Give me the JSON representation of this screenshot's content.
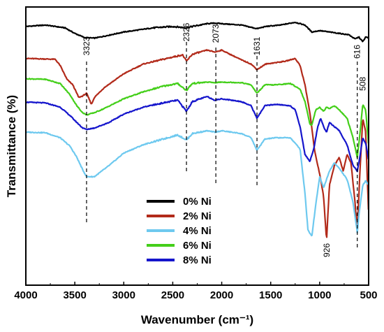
{
  "chart_data": {
    "type": "line",
    "title": "",
    "xlabel": "Wavenumber (cm⁻¹)",
    "ylabel": "Transmittance (%)",
    "xlim": [
      4000,
      500
    ],
    "x_reversed": true,
    "xticks": [
      4000,
      3500,
      3000,
      2500,
      2000,
      1500,
      1000,
      500
    ],
    "ylim": [
      0,
      10
    ],
    "y_ticks_shown": false,
    "grid": false,
    "legend_position": "center",
    "annotations": [
      {
        "label": "3323",
        "x": 3380,
        "label_pos": "top"
      },
      {
        "label": "2326",
        "x": 2360,
        "label_pos": "top"
      },
      {
        "label": "2073",
        "x": 2060,
        "label_pos": "top"
      },
      {
        "label": "1631",
        "x": 1640,
        "label_pos": "top"
      },
      {
        "label": "616",
        "x": 616,
        "label_pos": "top"
      },
      {
        "label": "508",
        "x": 560,
        "label_pos": "right"
      },
      {
        "label": "926",
        "x": 926,
        "label_pos": "bottom"
      }
    ],
    "series": [
      {
        "name": "0% Ni",
        "color": "#000000",
        "points": [
          [
            4000,
            9.3
          ],
          [
            3800,
            9.35
          ],
          [
            3600,
            9.25
          ],
          [
            3500,
            9.05
          ],
          [
            3400,
            8.9
          ],
          [
            3300,
            8.88
          ],
          [
            3200,
            8.95
          ],
          [
            3000,
            9.1
          ],
          [
            2700,
            9.25
          ],
          [
            2500,
            9.3
          ],
          [
            2360,
            9.25
          ],
          [
            2300,
            9.3
          ],
          [
            2150,
            9.4
          ],
          [
            2070,
            9.42
          ],
          [
            2000,
            9.4
          ],
          [
            1800,
            9.35
          ],
          [
            1640,
            9.22
          ],
          [
            1550,
            9.3
          ],
          [
            1400,
            9.35
          ],
          [
            1250,
            9.45
          ],
          [
            1150,
            9.35
          ],
          [
            1080,
            9.1
          ],
          [
            1000,
            9.15
          ],
          [
            900,
            9.1
          ],
          [
            800,
            9.05
          ],
          [
            700,
            9.0
          ],
          [
            640,
            8.85
          ],
          [
            600,
            8.92
          ],
          [
            560,
            8.75
          ],
          [
            530,
            8.92
          ],
          [
            500,
            8.9
          ]
        ]
      },
      {
        "name": "2% Ni",
        "color": "#b22a1a",
        "points": [
          [
            4000,
            8.15
          ],
          [
            3700,
            8.12
          ],
          [
            3650,
            7.9
          ],
          [
            3580,
            7.4
          ],
          [
            3520,
            7.2
          ],
          [
            3460,
            6.75
          ],
          [
            3420,
            6.8
          ],
          [
            3380,
            6.9
          ],
          [
            3330,
            6.5
          ],
          [
            3300,
            6.75
          ],
          [
            3200,
            7.1
          ],
          [
            3000,
            7.6
          ],
          [
            2800,
            7.95
          ],
          [
            2500,
            8.2
          ],
          [
            2400,
            8.28
          ],
          [
            2360,
            8.05
          ],
          [
            2300,
            8.3
          ],
          [
            2150,
            8.45
          ],
          [
            2070,
            8.38
          ],
          [
            2000,
            8.45
          ],
          [
            1800,
            8.1
          ],
          [
            1700,
            7.95
          ],
          [
            1640,
            7.75
          ],
          [
            1550,
            7.95
          ],
          [
            1450,
            8.0
          ],
          [
            1350,
            8.05
          ],
          [
            1250,
            8.15
          ],
          [
            1200,
            7.9
          ],
          [
            1150,
            7.2
          ],
          [
            1100,
            6.2
          ],
          [
            1050,
            4.8
          ],
          [
            1000,
            4.0
          ],
          [
            960,
            3.2
          ],
          [
            930,
            1.6
          ],
          [
            900,
            3.6
          ],
          [
            850,
            4.3
          ],
          [
            800,
            4.6
          ],
          [
            760,
            4.1
          ],
          [
            720,
            4.7
          ],
          [
            680,
            4.4
          ],
          [
            640,
            3.0
          ],
          [
            616,
            2.0
          ],
          [
            590,
            4.0
          ],
          [
            560,
            6.0
          ],
          [
            530,
            5.5
          ],
          [
            500,
            2.5
          ]
        ]
      },
      {
        "name": "4% Ni",
        "color": "#6ec9ef",
        "points": [
          [
            4000,
            5.5
          ],
          [
            3800,
            5.48
          ],
          [
            3650,
            5.3
          ],
          [
            3550,
            5.0
          ],
          [
            3480,
            4.6
          ],
          [
            3420,
            4.15
          ],
          [
            3380,
            3.9
          ],
          [
            3300,
            3.9
          ],
          [
            3150,
            4.3
          ],
          [
            3000,
            4.75
          ],
          [
            2800,
            5.05
          ],
          [
            2600,
            5.25
          ],
          [
            2450,
            5.4
          ],
          [
            2360,
            5.22
          ],
          [
            2300,
            5.45
          ],
          [
            2150,
            5.55
          ],
          [
            2070,
            5.5
          ],
          [
            2000,
            5.55
          ],
          [
            1800,
            5.45
          ],
          [
            1700,
            5.3
          ],
          [
            1640,
            4.85
          ],
          [
            1560,
            5.25
          ],
          [
            1450,
            5.3
          ],
          [
            1300,
            5.3
          ],
          [
            1200,
            4.9
          ],
          [
            1150,
            3.3
          ],
          [
            1120,
            2.0
          ],
          [
            1080,
            1.75
          ],
          [
            1040,
            2.9
          ],
          [
            1000,
            3.9
          ],
          [
            960,
            3.5
          ],
          [
            930,
            3.8
          ],
          [
            900,
            4.1
          ],
          [
            850,
            4.4
          ],
          [
            800,
            4.2
          ],
          [
            720,
            3.8
          ],
          [
            660,
            3.0
          ],
          [
            616,
            1.9
          ],
          [
            600,
            2.5
          ],
          [
            560,
            3.6
          ],
          [
            530,
            3.75
          ],
          [
            500,
            3.6
          ]
        ]
      },
      {
        "name": "6% Ni",
        "color": "#44cf1a",
        "points": [
          [
            4000,
            7.42
          ],
          [
            3800,
            7.4
          ],
          [
            3650,
            7.25
          ],
          [
            3550,
            6.85
          ],
          [
            3480,
            6.45
          ],
          [
            3420,
            6.2
          ],
          [
            3380,
            6.12
          ],
          [
            3300,
            6.2
          ],
          [
            3200,
            6.35
          ],
          [
            3000,
            6.7
          ],
          [
            2800,
            6.95
          ],
          [
            2600,
            7.15
          ],
          [
            2450,
            7.25
          ],
          [
            2360,
            7.0
          ],
          [
            2300,
            7.25
          ],
          [
            2150,
            7.3
          ],
          [
            2070,
            7.28
          ],
          [
            2000,
            7.3
          ],
          [
            1800,
            7.28
          ],
          [
            1700,
            7.2
          ],
          [
            1640,
            6.9
          ],
          [
            1560,
            7.2
          ],
          [
            1450,
            7.2
          ],
          [
            1300,
            7.25
          ],
          [
            1200,
            7.05
          ],
          [
            1150,
            6.6
          ],
          [
            1100,
            5.8
          ],
          [
            1080,
            5.75
          ],
          [
            1040,
            6.3
          ],
          [
            1000,
            6.4
          ],
          [
            960,
            6.25
          ],
          [
            930,
            6.4
          ],
          [
            900,
            6.35
          ],
          [
            850,
            6.45
          ],
          [
            800,
            6.3
          ],
          [
            720,
            6.0
          ],
          [
            660,
            5.3
          ],
          [
            616,
            4.6
          ],
          [
            590,
            5.4
          ],
          [
            560,
            6.5
          ],
          [
            530,
            6.3
          ],
          [
            500,
            5.0
          ]
        ]
      },
      {
        "name": "8% Ni",
        "color": "#1515cc",
        "points": [
          [
            4000,
            6.58
          ],
          [
            3800,
            6.55
          ],
          [
            3650,
            6.4
          ],
          [
            3550,
            6.1
          ],
          [
            3480,
            5.85
          ],
          [
            3420,
            5.65
          ],
          [
            3380,
            5.6
          ],
          [
            3300,
            5.65
          ],
          [
            3150,
            5.85
          ],
          [
            3000,
            6.15
          ],
          [
            2800,
            6.4
          ],
          [
            2600,
            6.55
          ],
          [
            2450,
            6.65
          ],
          [
            2360,
            6.25
          ],
          [
            2300,
            6.6
          ],
          [
            2150,
            6.78
          ],
          [
            2070,
            6.65
          ],
          [
            2000,
            6.7
          ],
          [
            1800,
            6.6
          ],
          [
            1700,
            6.45
          ],
          [
            1640,
            6.0
          ],
          [
            1560,
            6.45
          ],
          [
            1450,
            6.5
          ],
          [
            1300,
            6.45
          ],
          [
            1250,
            6.3
          ],
          [
            1200,
            5.7
          ],
          [
            1150,
            4.7
          ],
          [
            1100,
            4.45
          ],
          [
            1060,
            4.9
          ],
          [
            1020,
            5.7
          ],
          [
            990,
            6.0
          ],
          [
            960,
            5.7
          ],
          [
            930,
            5.5
          ],
          [
            900,
            5.85
          ],
          [
            850,
            5.7
          ],
          [
            800,
            5.55
          ],
          [
            720,
            5.05
          ],
          [
            660,
            4.3
          ],
          [
            616,
            4.1
          ],
          [
            590,
            4.6
          ],
          [
            560,
            5.3
          ],
          [
            530,
            5.1
          ],
          [
            500,
            4.5
          ]
        ]
      }
    ]
  }
}
